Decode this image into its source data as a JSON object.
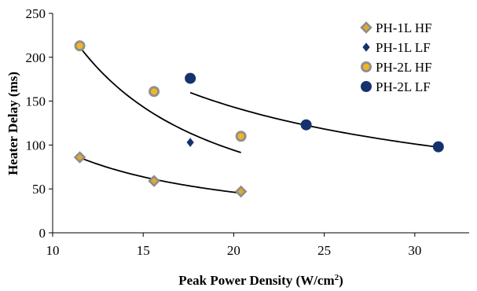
{
  "chart_data": {
    "type": "scatter",
    "xlabel": "Peak Power Density (W/cm",
    "xlabel_sup": "2",
    "xlabel_close": ")",
    "ylabel": "Heater Delay (ms)",
    "xlim": [
      10,
      33
    ],
    "ylim": [
      0,
      250
    ],
    "xticks": [
      10,
      15,
      20,
      25,
      30
    ],
    "yticks": [
      0,
      50,
      100,
      150,
      200,
      250
    ],
    "grid": false,
    "legend_position": "top-right",
    "series": [
      {
        "name": "PH-1L HF",
        "marker": "diamond",
        "fill": "#e0a733",
        "stroke": "#8c8c8c",
        "x": [
          11.5,
          15.6,
          20.4
        ],
        "y": [
          86,
          59,
          47
        ],
        "trend": {
          "a": 1305,
          "b": -1.115
        }
      },
      {
        "name": "PH-1L LF",
        "marker": "small-diamond",
        "fill": "#16326e",
        "stroke": "#16326e",
        "x": [
          17.6
        ],
        "y": [
          103
        ]
      },
      {
        "name": "PH-2L HF",
        "marker": "circle",
        "fill": "#f3b61f",
        "stroke": "#909090",
        "x": [
          11.5,
          15.6,
          20.4
        ],
        "y": [
          213,
          161,
          110
        ],
        "trend": {
          "a": 7580,
          "b": -1.465
        }
      },
      {
        "name": "PH-2L LF",
        "marker": "big-circle",
        "fill": "#16326e",
        "stroke": "#16326e",
        "x": [
          17.6,
          24.0,
          31.3
        ],
        "y": [
          176,
          123,
          98
        ],
        "trend": {
          "a": 1860,
          "b": -0.856
        }
      }
    ]
  }
}
